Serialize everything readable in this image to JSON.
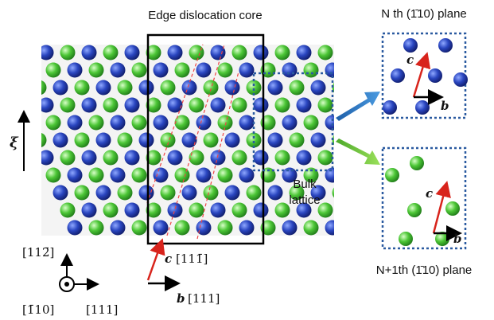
{
  "title": "Edge dislocation core",
  "xi": "ξ",
  "bulk_label": [
    "Bulk",
    "lattice"
  ],
  "insets": [
    {
      "title": "N th (1̄10) plane",
      "c": "c",
      "b": "b"
    },
    {
      "title": "N+1th (1̄10) plane",
      "c": "c",
      "b": "b"
    }
  ],
  "axes": {
    "up": "[112̄]",
    "out": "[1̄10]",
    "right": "[111]"
  },
  "vectors": {
    "c": "c",
    "c_dir": "[111̄]",
    "b": "b",
    "b_dir": "[111]"
  }
}
